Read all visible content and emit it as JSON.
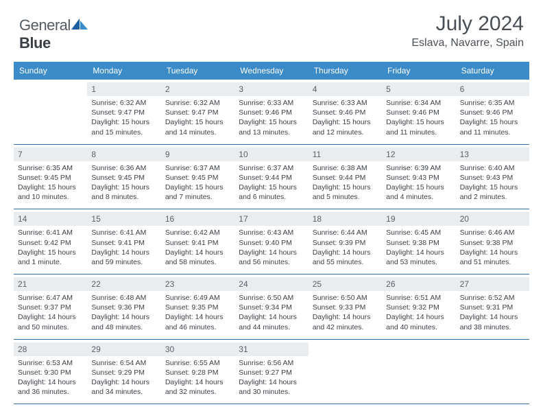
{
  "brand": {
    "part1": "General",
    "part2": "Blue"
  },
  "title": "July 2024",
  "location": "Eslava, Navarre, Spain",
  "day_names": [
    "Sunday",
    "Monday",
    "Tuesday",
    "Wednesday",
    "Thursday",
    "Friday",
    "Saturday"
  ],
  "header_bg": "#3b8bc9",
  "border_color": "#2f6ea8",
  "weeks": [
    [
      {
        "blank": true
      },
      {
        "day": "1",
        "sunrise": "Sunrise: 6:32 AM",
        "sunset": "Sunset: 9:47 PM",
        "daylight": "Daylight: 15 hours and 15 minutes."
      },
      {
        "day": "2",
        "sunrise": "Sunrise: 6:32 AM",
        "sunset": "Sunset: 9:47 PM",
        "daylight": "Daylight: 15 hours and 14 minutes."
      },
      {
        "day": "3",
        "sunrise": "Sunrise: 6:33 AM",
        "sunset": "Sunset: 9:46 PM",
        "daylight": "Daylight: 15 hours and 13 minutes."
      },
      {
        "day": "4",
        "sunrise": "Sunrise: 6:33 AM",
        "sunset": "Sunset: 9:46 PM",
        "daylight": "Daylight: 15 hours and 12 minutes."
      },
      {
        "day": "5",
        "sunrise": "Sunrise: 6:34 AM",
        "sunset": "Sunset: 9:46 PM",
        "daylight": "Daylight: 15 hours and 11 minutes."
      },
      {
        "day": "6",
        "sunrise": "Sunrise: 6:35 AM",
        "sunset": "Sunset: 9:46 PM",
        "daylight": "Daylight: 15 hours and 11 minutes."
      }
    ],
    [
      {
        "day": "7",
        "sunrise": "Sunrise: 6:35 AM",
        "sunset": "Sunset: 9:45 PM",
        "daylight": "Daylight: 15 hours and 10 minutes."
      },
      {
        "day": "8",
        "sunrise": "Sunrise: 6:36 AM",
        "sunset": "Sunset: 9:45 PM",
        "daylight": "Daylight: 15 hours and 8 minutes."
      },
      {
        "day": "9",
        "sunrise": "Sunrise: 6:37 AM",
        "sunset": "Sunset: 9:45 PM",
        "daylight": "Daylight: 15 hours and 7 minutes."
      },
      {
        "day": "10",
        "sunrise": "Sunrise: 6:37 AM",
        "sunset": "Sunset: 9:44 PM",
        "daylight": "Daylight: 15 hours and 6 minutes."
      },
      {
        "day": "11",
        "sunrise": "Sunrise: 6:38 AM",
        "sunset": "Sunset: 9:44 PM",
        "daylight": "Daylight: 15 hours and 5 minutes."
      },
      {
        "day": "12",
        "sunrise": "Sunrise: 6:39 AM",
        "sunset": "Sunset: 9:43 PM",
        "daylight": "Daylight: 15 hours and 4 minutes."
      },
      {
        "day": "13",
        "sunrise": "Sunrise: 6:40 AM",
        "sunset": "Sunset: 9:43 PM",
        "daylight": "Daylight: 15 hours and 2 minutes."
      }
    ],
    [
      {
        "day": "14",
        "sunrise": "Sunrise: 6:41 AM",
        "sunset": "Sunset: 9:42 PM",
        "daylight": "Daylight: 15 hours and 1 minute."
      },
      {
        "day": "15",
        "sunrise": "Sunrise: 6:41 AM",
        "sunset": "Sunset: 9:41 PM",
        "daylight": "Daylight: 14 hours and 59 minutes."
      },
      {
        "day": "16",
        "sunrise": "Sunrise: 6:42 AM",
        "sunset": "Sunset: 9:41 PM",
        "daylight": "Daylight: 14 hours and 58 minutes."
      },
      {
        "day": "17",
        "sunrise": "Sunrise: 6:43 AM",
        "sunset": "Sunset: 9:40 PM",
        "daylight": "Daylight: 14 hours and 56 minutes."
      },
      {
        "day": "18",
        "sunrise": "Sunrise: 6:44 AM",
        "sunset": "Sunset: 9:39 PM",
        "daylight": "Daylight: 14 hours and 55 minutes."
      },
      {
        "day": "19",
        "sunrise": "Sunrise: 6:45 AM",
        "sunset": "Sunset: 9:38 PM",
        "daylight": "Daylight: 14 hours and 53 minutes."
      },
      {
        "day": "20",
        "sunrise": "Sunrise: 6:46 AM",
        "sunset": "Sunset: 9:38 PM",
        "daylight": "Daylight: 14 hours and 51 minutes."
      }
    ],
    [
      {
        "day": "21",
        "sunrise": "Sunrise: 6:47 AM",
        "sunset": "Sunset: 9:37 PM",
        "daylight": "Daylight: 14 hours and 50 minutes."
      },
      {
        "day": "22",
        "sunrise": "Sunrise: 6:48 AM",
        "sunset": "Sunset: 9:36 PM",
        "daylight": "Daylight: 14 hours and 48 minutes."
      },
      {
        "day": "23",
        "sunrise": "Sunrise: 6:49 AM",
        "sunset": "Sunset: 9:35 PM",
        "daylight": "Daylight: 14 hours and 46 minutes."
      },
      {
        "day": "24",
        "sunrise": "Sunrise: 6:50 AM",
        "sunset": "Sunset: 9:34 PM",
        "daylight": "Daylight: 14 hours and 44 minutes."
      },
      {
        "day": "25",
        "sunrise": "Sunrise: 6:50 AM",
        "sunset": "Sunset: 9:33 PM",
        "daylight": "Daylight: 14 hours and 42 minutes."
      },
      {
        "day": "26",
        "sunrise": "Sunrise: 6:51 AM",
        "sunset": "Sunset: 9:32 PM",
        "daylight": "Daylight: 14 hours and 40 minutes."
      },
      {
        "day": "27",
        "sunrise": "Sunrise: 6:52 AM",
        "sunset": "Sunset: 9:31 PM",
        "daylight": "Daylight: 14 hours and 38 minutes."
      }
    ],
    [
      {
        "day": "28",
        "sunrise": "Sunrise: 6:53 AM",
        "sunset": "Sunset: 9:30 PM",
        "daylight": "Daylight: 14 hours and 36 minutes."
      },
      {
        "day": "29",
        "sunrise": "Sunrise: 6:54 AM",
        "sunset": "Sunset: 9:29 PM",
        "daylight": "Daylight: 14 hours and 34 minutes."
      },
      {
        "day": "30",
        "sunrise": "Sunrise: 6:55 AM",
        "sunset": "Sunset: 9:28 PM",
        "daylight": "Daylight: 14 hours and 32 minutes."
      },
      {
        "day": "31",
        "sunrise": "Sunrise: 6:56 AM",
        "sunset": "Sunset: 9:27 PM",
        "daylight": "Daylight: 14 hours and 30 minutes."
      },
      {
        "blank": true
      },
      {
        "blank": true
      },
      {
        "blank": true
      }
    ]
  ]
}
